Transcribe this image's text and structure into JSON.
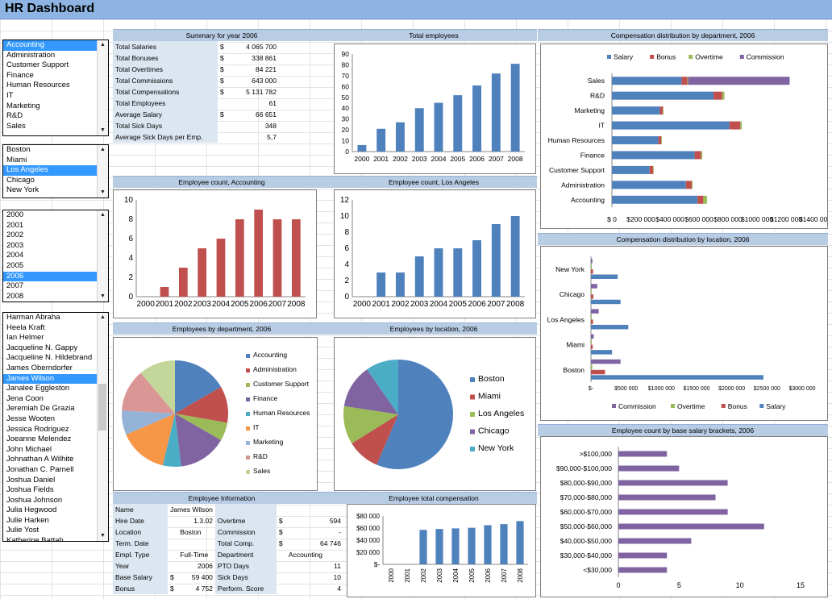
{
  "app": {
    "title": "HR Dashboard"
  },
  "colors": {
    "blue": "#4f81bd",
    "red": "#c0504d",
    "green": "#9bbb59",
    "purple": "#8064a2",
    "teal": "#4bacc6",
    "orange": "#f79646",
    "header": "#b8cce4",
    "select": "#3399ff"
  },
  "lists": {
    "departments": {
      "items": [
        "Accounting",
        "Administration",
        "Customer Support",
        "Finance",
        "Human Resources",
        "IT",
        "Marketing",
        "R&D",
        "Sales"
      ],
      "selected": 0
    },
    "locations": {
      "items": [
        "Boston",
        "Miami",
        "Los Angeles",
        "Chicago",
        "New York"
      ],
      "selected": 2
    },
    "years": {
      "items": [
        "2000",
        "2001",
        "2002",
        "2003",
        "2004",
        "2005",
        "2006",
        "2007",
        "2008"
      ],
      "selected": 6
    },
    "employees": {
      "items": [
        "Harman Abraha",
        "Heela Kraft",
        "Ian Helmer",
        "Jacqueline N. Gappy",
        "Jacqueline N. Hildebrand",
        "James Oberndorfer",
        "James Wilson",
        "Janalee Eggleston",
        "Jena Coon",
        "Jeremiah De Grazia",
        "Jesse Wooten",
        "Jessica Rodriguez",
        "Joeanne Melendez",
        "John  Michael",
        "Johnathan A Wilhite",
        "Jonathan C. Parnell",
        "Joshua Daniel",
        "Joshua Fields",
        "Joshua Johnson",
        "Julia  Hegwood",
        "Julie Harken",
        "Julie Yost",
        "Katherine Battah"
      ],
      "selected": 6
    }
  },
  "summary": {
    "header": "Summary for year 2006",
    "rows": [
      {
        "label": "Total Salaries",
        "cur": "$",
        "value": "4 065 700"
      },
      {
        "label": "Total Bonuses",
        "cur": "$",
        "value": "338 861"
      },
      {
        "label": "Total Overtimes",
        "cur": "$",
        "value": "84 221"
      },
      {
        "label": "Total Commissions",
        "cur": "$",
        "value": "643 000"
      },
      {
        "label": "Total Compensations",
        "cur": "$",
        "value": "5 131 782"
      },
      {
        "label": "Total Employees",
        "cur": "",
        "value": "61"
      },
      {
        "label": "Average Salary",
        "cur": "$",
        "value": "66 651"
      },
      {
        "label": "Total Sick Days",
        "cur": "",
        "value": "348"
      },
      {
        "label": "Average Sick Days per Emp.",
        "cur": "",
        "value": "5,7"
      }
    ]
  },
  "employee_info": {
    "header": "Employee Information",
    "name_label": "Name",
    "name_value": "James Wilson",
    "left": [
      {
        "label": "Hire Date",
        "cur": "",
        "value": "1.3.02"
      },
      {
        "label": "Location",
        "cur": "",
        "value": "Boston"
      },
      {
        "label": "Term. Date",
        "cur": "",
        "value": ""
      },
      {
        "label": "Empl. Type",
        "cur": "",
        "value": "Full-Time"
      },
      {
        "label": "Year",
        "cur": "",
        "value": "2006"
      },
      {
        "label": "Base Salary",
        "cur": "$",
        "value": "59 400"
      },
      {
        "label": "Bonus",
        "cur": "$",
        "value": "4 752"
      }
    ],
    "right": [
      {
        "label": "Overtime",
        "cur": "$",
        "value": "594"
      },
      {
        "label": "Commission",
        "cur": "$",
        "value": "-"
      },
      {
        "label": "Total Comp.",
        "cur": "$",
        "value": "64 746"
      },
      {
        "label": "Department",
        "cur": "",
        "value": "Accounting"
      },
      {
        "label": "PTO Days",
        "cur": "",
        "value": "11"
      },
      {
        "label": "Sick Days",
        "cur": "",
        "value": "10"
      },
      {
        "label": "Perform. Score",
        "cur": "",
        "value": "4"
      }
    ]
  },
  "chart_data": [
    {
      "id": "total_employees",
      "type": "bar",
      "title": "Total employees",
      "categories": [
        "2000",
        "2001",
        "2002",
        "2003",
        "2004",
        "2005",
        "2006",
        "2007",
        "2008"
      ],
      "values": [
        6,
        21,
        27,
        40,
        45,
        52,
        61,
        72,
        81
      ],
      "ylim": [
        0,
        90
      ],
      "yticks": [
        0,
        10,
        20,
        30,
        40,
        50,
        60,
        70,
        80,
        90
      ],
      "color": "#4f81bd"
    },
    {
      "id": "emp_dept",
      "type": "bar",
      "title": "Employee count, Accounting",
      "categories": [
        "2000",
        "2001",
        "2002",
        "2003",
        "2004",
        "2005",
        "2006",
        "2007",
        "2008"
      ],
      "values": [
        0,
        1,
        3,
        5,
        6,
        8,
        9,
        8,
        8
      ],
      "ylim": [
        0,
        10
      ],
      "yticks": [
        0,
        2,
        4,
        6,
        8,
        10
      ],
      "color": "#c0504d"
    },
    {
      "id": "emp_loc",
      "type": "bar",
      "title": "Employee count, Los Angeles",
      "categories": [
        "2000",
        "2001",
        "2002",
        "2003",
        "2004",
        "2005",
        "2006",
        "2007",
        "2008"
      ],
      "values": [
        0,
        3,
        3,
        5,
        6,
        6,
        7,
        9,
        10
      ],
      "ylim": [
        0,
        12
      ],
      "yticks": [
        0,
        2,
        4,
        6,
        8,
        10,
        12
      ],
      "color": "#4f81bd"
    },
    {
      "id": "pie_dept",
      "type": "pie",
      "title": "Employees by department, 2006",
      "categories": [
        "Accounting",
        "Administration",
        "Customer Support",
        "Finance",
        "Human Resources",
        "IT",
        "Marketing",
        "R&D",
        "Sales"
      ],
      "values": [
        9,
        6,
        3,
        8,
        3,
        8,
        4,
        7,
        6
      ],
      "colors": [
        "#4f81bd",
        "#c0504d",
        "#9bbb59",
        "#8064a2",
        "#4bacc6",
        "#f79646",
        "#95b3d7",
        "#da9694",
        "#c4d79b"
      ]
    },
    {
      "id": "pie_loc",
      "type": "pie",
      "title": "Employees by location, 2006",
      "categories": [
        "Boston",
        "Miami",
        "Los Angeles",
        "Chicago",
        "New York"
      ],
      "values": [
        35,
        6,
        7,
        8,
        6
      ],
      "colors": [
        "#4f81bd",
        "#c0504d",
        "#9bbb59",
        "#8064a2",
        "#4bacc6"
      ]
    },
    {
      "id": "emp_total_comp",
      "type": "bar",
      "title": "Employee total compensation",
      "categories": [
        "2000",
        "2001",
        "2002",
        "2003",
        "2004",
        "2005",
        "2006",
        "2007",
        "2008"
      ],
      "values": [
        0,
        0,
        57000,
        58500,
        59500,
        60500,
        64746,
        66500,
        71500
      ],
      "ylim": [
        0,
        80000
      ],
      "yticks": [
        0,
        20000,
        40000,
        60000,
        80000
      ],
      "yticklabels": [
        "$-",
        "$20 000",
        "$40 000",
        "$60 000",
        "$80 000"
      ],
      "color": "#4f81bd"
    },
    {
      "id": "comp_by_dept",
      "type": "bar",
      "orientation": "horizontal",
      "stacked": true,
      "title": "Compensation distribution by department, 2006",
      "categories": [
        "Sales",
        "R&D",
        "Marketing",
        "IT",
        "Human Resources",
        "Finance",
        "Customer Support",
        "Administration",
        "Accounting"
      ],
      "series": [
        {
          "name": "Salary",
          "color": "#4f81bd",
          "values": [
            480000,
            700000,
            330000,
            810000,
            320000,
            570000,
            260000,
            510000,
            590000
          ]
        },
        {
          "name": "Bonus",
          "color": "#c0504d",
          "values": [
            40000,
            60000,
            22000,
            75000,
            20000,
            45000,
            25000,
            40000,
            40000
          ]
        },
        {
          "name": "Overtime",
          "color": "#9bbb59",
          "values": [
            5000,
            15000,
            3000,
            10000,
            5000,
            8000,
            3000,
            5000,
            25000
          ]
        },
        {
          "name": "Commission",
          "color": "#8064a2",
          "values": [
            700000,
            0,
            0,
            0,
            0,
            0,
            0,
            0,
            0
          ]
        }
      ],
      "xlim": [
        0,
        1400000
      ],
      "xticklabels": [
        "$ 0",
        "$200 000",
        "$400 000",
        "$600 000",
        "$800 000",
        "$1000 000",
        "$1200 000",
        "$1400 000"
      ],
      "legend": "top"
    },
    {
      "id": "comp_by_loc",
      "type": "bar",
      "orientation": "horizontal",
      "grouped": true,
      "title": "Compensation distribution by location, 2006",
      "categories": [
        "New York",
        "Chicago",
        "Los Angeles",
        "Miami",
        "Boston"
      ],
      "series": [
        {
          "name": "Commission",
          "color": "#8064a2",
          "values": [
            20000,
            90000,
            110000,
            40000,
            420000
          ]
        },
        {
          "name": "Overtime",
          "color": "#9bbb59",
          "values": [
            2000,
            3000,
            3000,
            4000,
            20000
          ]
        },
        {
          "name": "Bonus",
          "color": "#c0504d",
          "values": [
            30000,
            35000,
            30000,
            25000,
            200000
          ]
        },
        {
          "name": "Salary",
          "color": "#4f81bd",
          "values": [
            380000,
            420000,
            530000,
            300000,
            2450000
          ]
        }
      ],
      "xlim": [
        0,
        3000000
      ],
      "xticklabels": [
        "$-",
        "$500 000",
        "$1000 000",
        "$1500 000",
        "$2000 000",
        "$2500 000",
        "$3000 000"
      ],
      "legend": "bottom"
    },
    {
      "id": "salary_brackets",
      "type": "bar",
      "orientation": "horizontal",
      "title": "Employee count by base salary brackets, 2006",
      "categories": [
        ">$100,000",
        "$90,000-$100,000",
        "$80,000-$90,000",
        "$70,000-$80,000",
        "$60,000-$70,000",
        "$50,000-$60,000",
        "$40,000-$50,000",
        "$30,000-$40,000",
        "<$30,000"
      ],
      "values": [
        4,
        5,
        9,
        8,
        9,
        12,
        6,
        4,
        4
      ],
      "xlim": [
        0,
        15
      ],
      "xticks": [
        0,
        5,
        10,
        15
      ],
      "color": "#8064a2"
    }
  ]
}
